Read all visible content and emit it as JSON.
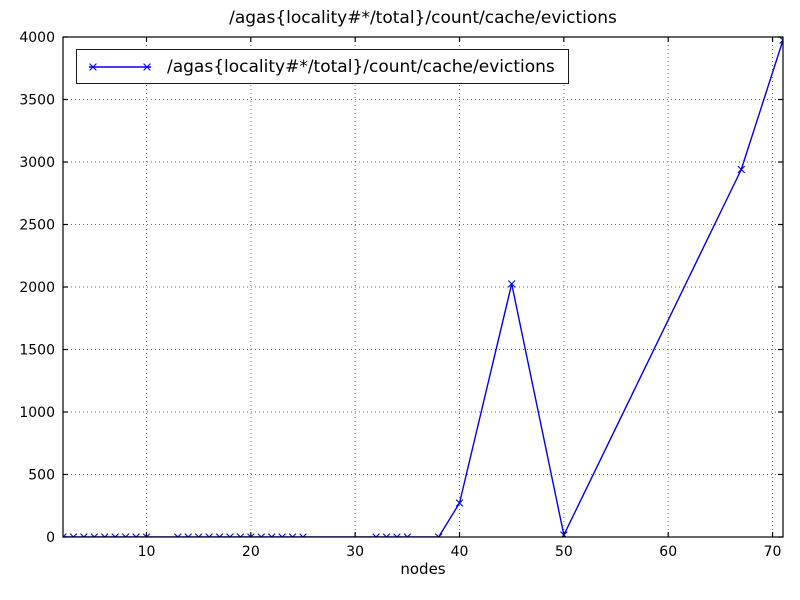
{
  "chart_data": {
    "type": "line",
    "title": "/agas{locality#*/total}/count/cache/evictions",
    "xlabel": "nodes",
    "ylabel": "",
    "xlim": [
      2,
      71
    ],
    "ylim": [
      0,
      4000
    ],
    "xticks": [
      10,
      20,
      30,
      40,
      50,
      60,
      70
    ],
    "yticks": [
      0,
      500,
      1000,
      1500,
      2000,
      2500,
      3000,
      3500,
      4000
    ],
    "grid": true,
    "grid_style": "dotted",
    "legend_position": "upper-left",
    "frame_color": "#000000",
    "grid_color": "#666666",
    "series": [
      {
        "name": "/agas{locality#*/total}/count/cache/evictions",
        "color": "#0000ee",
        "marker": "x",
        "points": [
          [
            2,
            0
          ],
          [
            3,
            0
          ],
          [
            4,
            0
          ],
          [
            5,
            0
          ],
          [
            6,
            0
          ],
          [
            7,
            0
          ],
          [
            8,
            0
          ],
          [
            9,
            0
          ],
          [
            10,
            0
          ],
          [
            13,
            0
          ],
          [
            14,
            0
          ],
          [
            15,
            0
          ],
          [
            16,
            0
          ],
          [
            17,
            0
          ],
          [
            18,
            0
          ],
          [
            19,
            0
          ],
          [
            20,
            0
          ],
          [
            21,
            0
          ],
          [
            22,
            0
          ],
          [
            23,
            0
          ],
          [
            24,
            0
          ],
          [
            25,
            0
          ],
          [
            32,
            0
          ],
          [
            33,
            0
          ],
          [
            34,
            0
          ],
          [
            35,
            0
          ],
          [
            38,
            0
          ],
          [
            40,
            272
          ],
          [
            45,
            2025
          ],
          [
            50,
            16
          ],
          [
            67,
            2940
          ],
          [
            71,
            3975
          ]
        ]
      }
    ]
  }
}
